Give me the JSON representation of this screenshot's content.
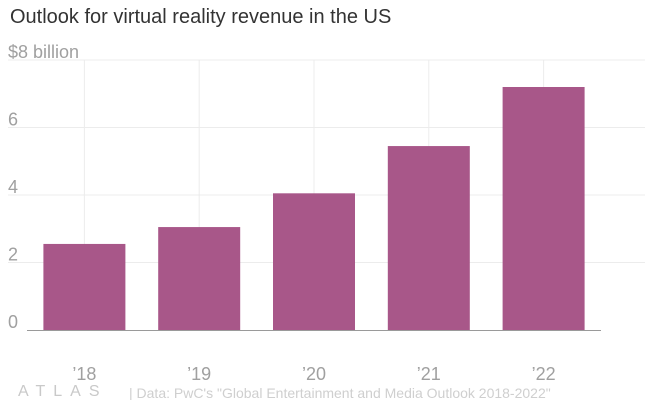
{
  "title": "Outlook for virtual reality revenue in the US",
  "footer": {
    "logo": "ATLAS",
    "source": "| Data: PwC's \"Global Entertainment and Media Outlook 2018-2022\""
  },
  "colors": {
    "bar": "#a85789",
    "grid": "#ececec",
    "axis": "#9a9a9a",
    "tick_text": "#a0a0a0"
  },
  "chart_data": {
    "type": "bar",
    "title": "Outlook for virtual reality revenue in the US",
    "categories": [
      "’18",
      "’19",
      "’20",
      "’21",
      "’22"
    ],
    "values": [
      2.55,
      3.05,
      4.05,
      5.45,
      7.2
    ],
    "y_ticks": [
      0,
      2,
      4,
      6,
      8
    ],
    "y_tick_labels": [
      "0",
      "2",
      "4",
      "6",
      "$8 billion"
    ],
    "ylim": [
      0,
      8
    ],
    "xlabel": "",
    "ylabel": "",
    "grid": true,
    "legend": "none"
  }
}
